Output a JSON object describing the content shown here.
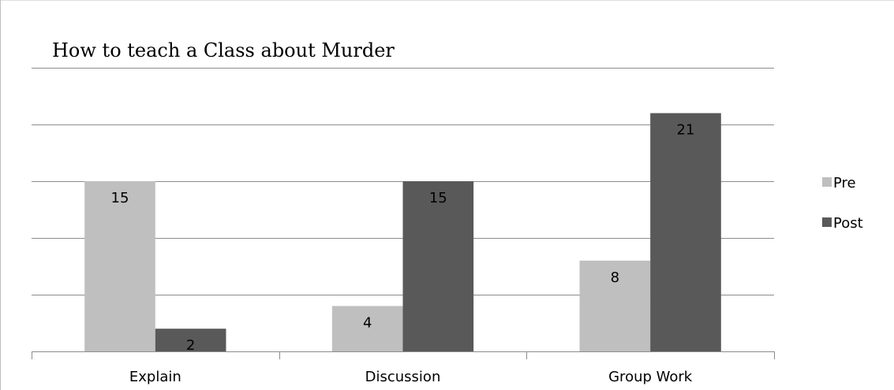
{
  "chart_data": {
    "type": "bar",
    "title": "How to teach a Class about Murder",
    "categories": [
      "Explain",
      "Discussion",
      "Group Work"
    ],
    "series": [
      {
        "name": "Pre",
        "values": [
          15,
          4,
          8
        ],
        "color": "#bfbfbf"
      },
      {
        "name": "Post",
        "values": [
          2,
          15,
          21
        ],
        "color": "#595959"
      }
    ],
    "ylim": [
      0,
      25
    ],
    "ytick_step": 5,
    "grid": true,
    "show_y_tick_labels": false,
    "legend": "right",
    "data_labels": true
  }
}
